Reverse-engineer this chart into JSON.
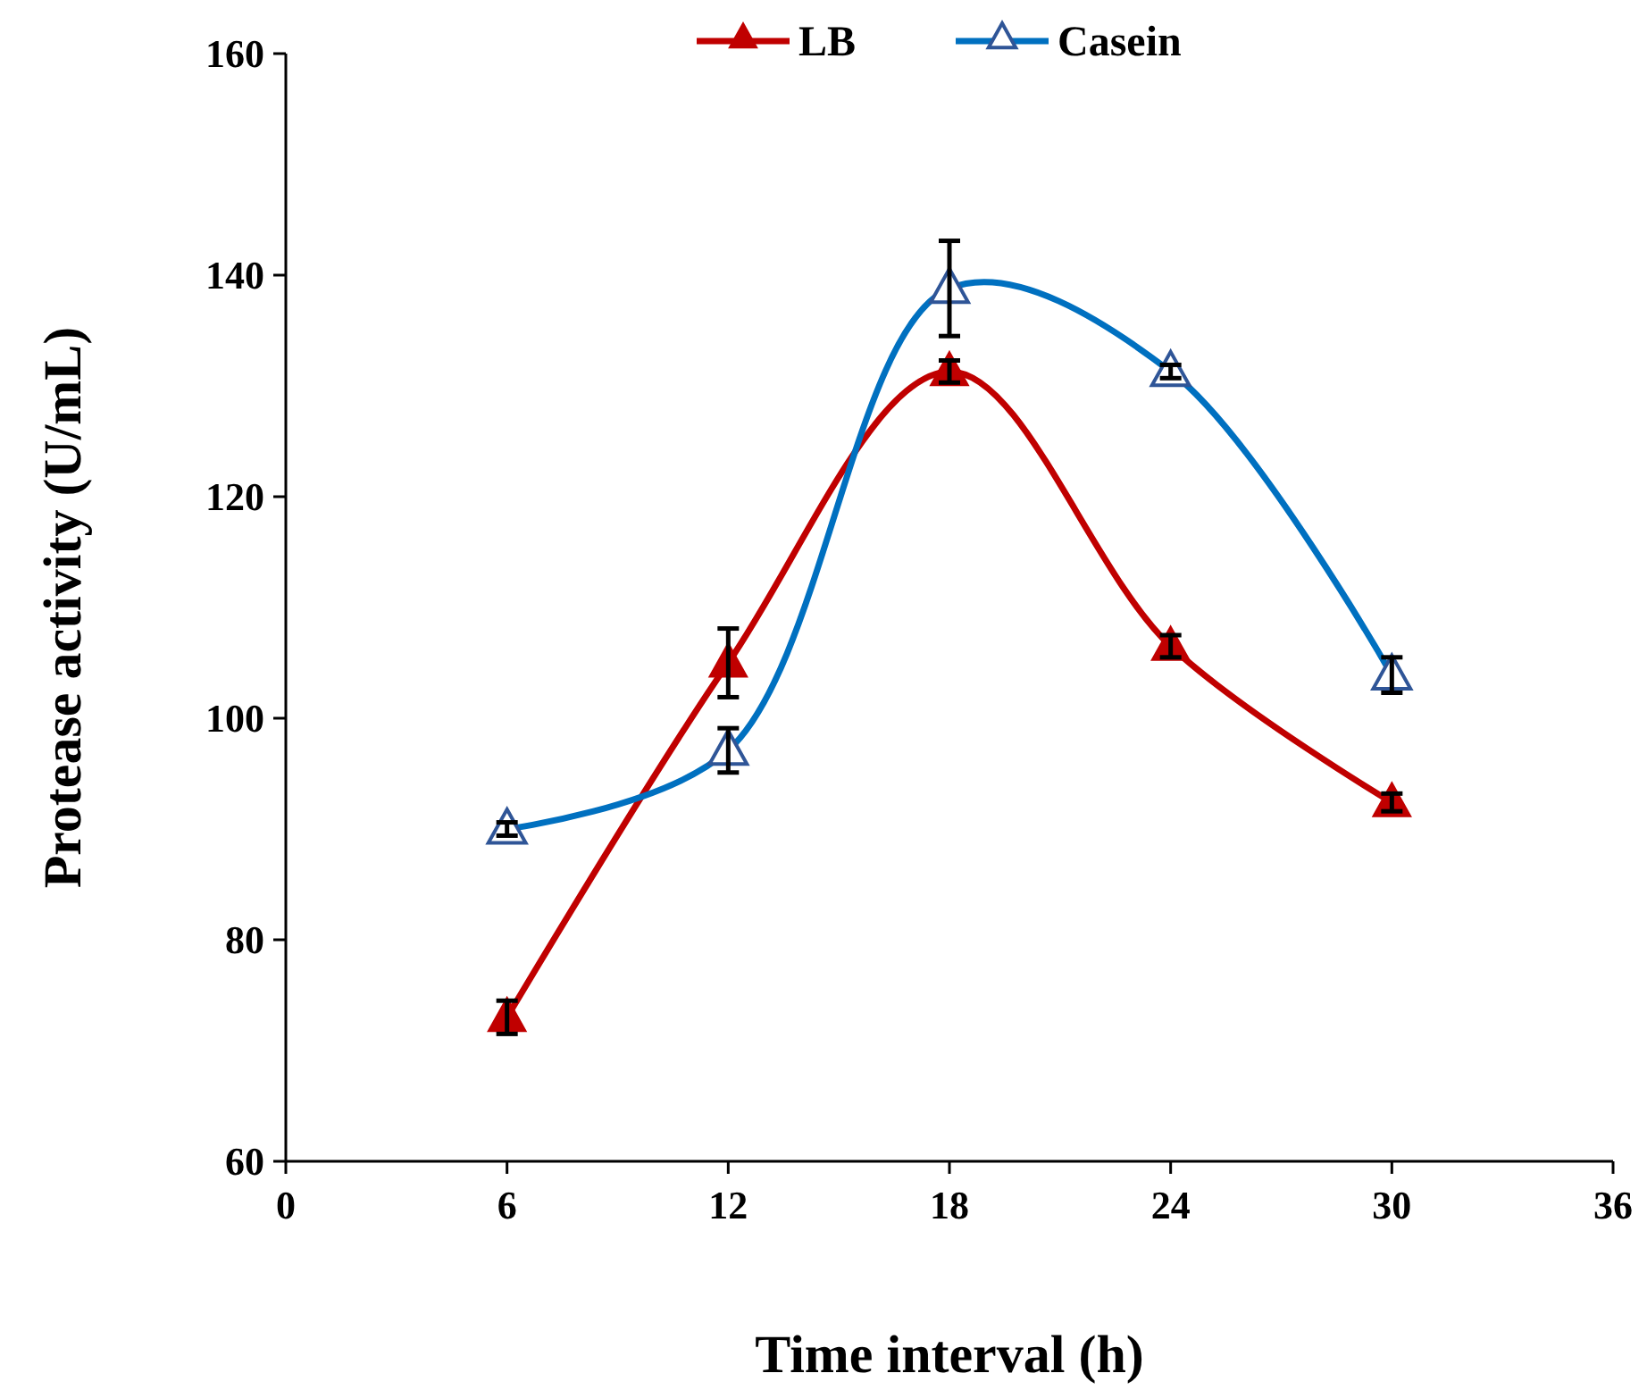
{
  "chart_data": {
    "type": "line",
    "xlabel": "Time interval (h)",
    "ylabel": "Protease activity (U/mL)",
    "x": [
      6,
      12,
      18,
      24,
      30
    ],
    "xlim": [
      0,
      36
    ],
    "xticks": [
      0,
      6,
      12,
      18,
      24,
      30,
      36
    ],
    "ylim": [
      60,
      160
    ],
    "yticks": [
      60,
      80,
      100,
      120,
      140,
      160
    ],
    "grid": false,
    "legend": "top",
    "marker": "triangle",
    "line_style": "solid",
    "series": [
      {
        "name": "LB",
        "color": "#c00000",
        "values": [
          73,
          105,
          131.3,
          106.5,
          92.4
        ],
        "errors": [
          1.5,
          3.1,
          1,
          1,
          0.8
        ]
      },
      {
        "name": "Casein",
        "color": "#0070c0",
        "values": [
          90,
          97.1,
          138.8,
          131.3,
          103.9
        ],
        "errors": [
          0.6,
          2,
          4.3,
          0.6,
          1.6
        ]
      }
    ]
  }
}
